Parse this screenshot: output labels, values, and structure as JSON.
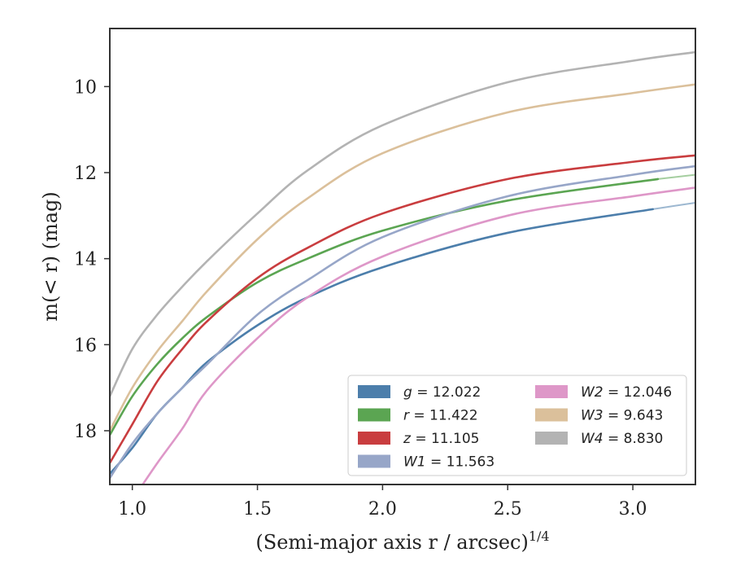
{
  "chart_data": {
    "type": "line",
    "xlabel": "(Semi-major axis r / arcsec)",
    "xlabel_sup": "1/4",
    "ylabel": "m(< r) (mag)",
    "xlim": [
      0.91,
      3.25
    ],
    "ylim": [
      19.25,
      8.65
    ],
    "y_inverted": true,
    "x_ticks": [
      1.0,
      1.5,
      2.0,
      2.5,
      3.0
    ],
    "x_tick_labels": [
      "1.0",
      "1.5",
      "2.0",
      "2.5",
      "3.0"
    ],
    "y_ticks": [
      10,
      12,
      14,
      16,
      18
    ],
    "y_tick_labels": [
      "10",
      "12",
      "14",
      "16",
      "18"
    ],
    "grid": false,
    "legend_position": "lower-right",
    "series": [
      {
        "name": "g = 12.022",
        "symbol": "g",
        "value": "12.022",
        "color": "#4c7eab",
        "x": [
          0.91,
          1.0,
          1.1,
          1.2,
          1.3,
          1.5,
          1.7,
          2.0,
          2.5,
          3.08
        ],
        "y": [
          19.0,
          18.4,
          17.6,
          17.0,
          16.4,
          15.55,
          14.9,
          14.2,
          13.4,
          12.85
        ],
        "ext_x": [
          3.08,
          3.25
        ],
        "ext_y": [
          12.85,
          12.7
        ]
      },
      {
        "name": "r = 11.422",
        "symbol": "r",
        "value": "11.422",
        "color": "#5ba552",
        "x": [
          0.91,
          1.0,
          1.1,
          1.2,
          1.3,
          1.5,
          1.7,
          2.0,
          2.5,
          3.1
        ],
        "y": [
          18.1,
          17.2,
          16.45,
          15.85,
          15.35,
          14.55,
          14.0,
          13.35,
          12.65,
          12.15
        ],
        "ext_x": [
          3.1,
          3.25
        ],
        "ext_y": [
          12.15,
          12.05
        ]
      },
      {
        "name": "z = 11.105",
        "symbol": "z",
        "value": "11.105",
        "color": "#c93d3f",
        "x": [
          0.91,
          1.0,
          1.1,
          1.2,
          1.3,
          1.5,
          1.7,
          2.0,
          2.5,
          3.0,
          3.25
        ],
        "y": [
          18.75,
          17.85,
          16.85,
          16.1,
          15.45,
          14.45,
          13.75,
          12.95,
          12.15,
          11.75,
          11.6
        ],
        "ext_x": [],
        "ext_y": []
      },
      {
        "name": "W1 = 11.563",
        "symbol": "W1",
        "value": "11.563",
        "color": "#97a6c8",
        "x": [
          0.91,
          1.0,
          1.1,
          1.2,
          1.3,
          1.5,
          1.7,
          2.0,
          2.5,
          3.0,
          3.25
        ],
        "y": [
          19.1,
          18.3,
          17.6,
          17.0,
          16.45,
          15.3,
          14.5,
          13.5,
          12.55,
          12.05,
          11.85
        ],
        "ext_x": [],
        "ext_y": []
      },
      {
        "name": "W2 = 12.046",
        "symbol": "W2",
        "value": "12.046",
        "color": "#de97c8",
        "x": [
          0.91,
          1.0,
          1.1,
          1.2,
          1.3,
          1.5,
          1.7,
          2.0,
          2.5,
          3.0,
          3.25
        ],
        "y": [
          20.3,
          19.6,
          18.75,
          17.95,
          17.05,
          15.85,
          14.9,
          13.95,
          13.0,
          12.55,
          12.35
        ],
        "ext_x": [],
        "ext_y": []
      },
      {
        "name": "W3 = 9.643",
        "symbol": "W3",
        "value": "9.643",
        "color": "#dbc09b",
        "x": [
          0.91,
          1.0,
          1.1,
          1.2,
          1.3,
          1.5,
          1.7,
          2.0,
          2.5,
          3.0,
          3.25
        ],
        "y": [
          18.0,
          17.0,
          16.15,
          15.45,
          14.75,
          13.55,
          12.6,
          11.55,
          10.6,
          10.15,
          9.95
        ],
        "ext_x": [],
        "ext_y": []
      },
      {
        "name": "W4 = 8.830",
        "symbol": "W4",
        "value": "8.830",
        "color": "#b3b3b3",
        "x": [
          0.91,
          1.0,
          1.1,
          1.2,
          1.3,
          1.5,
          1.7,
          2.0,
          2.5,
          3.0,
          3.25
        ],
        "y": [
          17.2,
          16.1,
          15.3,
          14.65,
          14.05,
          12.95,
          11.95,
          10.9,
          9.9,
          9.4,
          9.2
        ],
        "ext_x": [],
        "ext_y": []
      }
    ]
  }
}
